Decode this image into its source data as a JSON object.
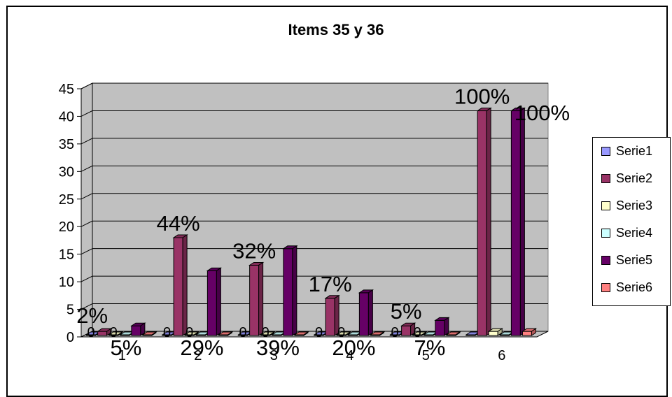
{
  "chart_data": {
    "type": "bar",
    "title": "Items 35 y 36",
    "categories": [
      "1",
      "2",
      "3",
      "4",
      "5",
      "6"
    ],
    "ylim": [
      0,
      45
    ],
    "yticks": [
      0,
      5,
      10,
      15,
      20,
      25,
      30,
      35,
      40,
      45
    ],
    "grid": true,
    "legend_position": "right",
    "series": [
      {
        "name": "Serie1",
        "color": "#9999ff",
        "values": [
          0,
          0,
          0,
          0,
          0,
          0
        ],
        "labels": [
          "0",
          "0",
          "0",
          "0",
          "0",
          ""
        ]
      },
      {
        "name": "Serie2",
        "color": "#993366",
        "values": [
          1,
          18,
          13,
          7,
          2,
          41
        ],
        "labels": [
          "2%",
          "44%",
          "32%",
          "17%",
          "5%",
          "100%"
        ]
      },
      {
        "name": "Serie3",
        "color": "#ffffcc",
        "values": [
          0,
          0,
          0,
          0,
          0,
          1
        ],
        "labels": [
          "0",
          "0",
          "0",
          "0",
          "0",
          ""
        ]
      },
      {
        "name": "Serie4",
        "color": "#ccffff",
        "values": [
          0,
          0,
          0,
          0,
          0,
          0
        ],
        "labels": [
          "",
          "",
          "",
          "",
          "",
          ""
        ]
      },
      {
        "name": "Serie5",
        "color": "#660066",
        "values": [
          2,
          12,
          16,
          8,
          3,
          41
        ],
        "labels": [
          "5%",
          "29%",
          "39%",
          "20%",
          "7%",
          "100%"
        ]
      },
      {
        "name": "Serie6",
        "color": "#ff8080",
        "values": [
          0,
          0,
          0,
          0,
          0,
          1
        ],
        "labels": [
          "",
          "",
          "",
          "",
          "",
          ""
        ]
      }
    ]
  }
}
